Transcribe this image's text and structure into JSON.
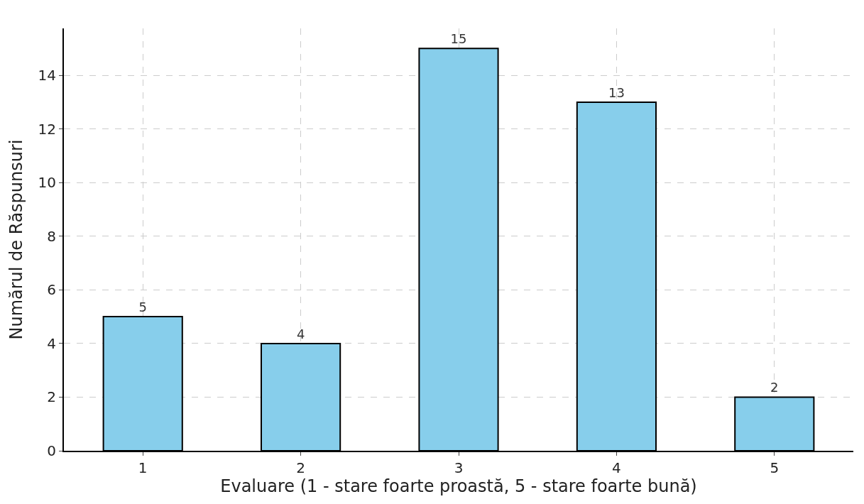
{
  "chart_data": {
    "type": "bar",
    "xlabel": "Evaluare (1 - stare foarte proastă, 5 - stare foarte bună)",
    "ylabel": "Numărul de Răspunsuri",
    "categories": [
      "1",
      "2",
      "3",
      "4",
      "5"
    ],
    "values": [
      5,
      4,
      15,
      13,
      2
    ],
    "color": "#87ceeb",
    "ylim": [
      0,
      15.75
    ],
    "yticks": [
      0,
      2,
      4,
      6,
      8,
      10,
      12,
      14
    ],
    "grid": true,
    "data_labels": true
  }
}
